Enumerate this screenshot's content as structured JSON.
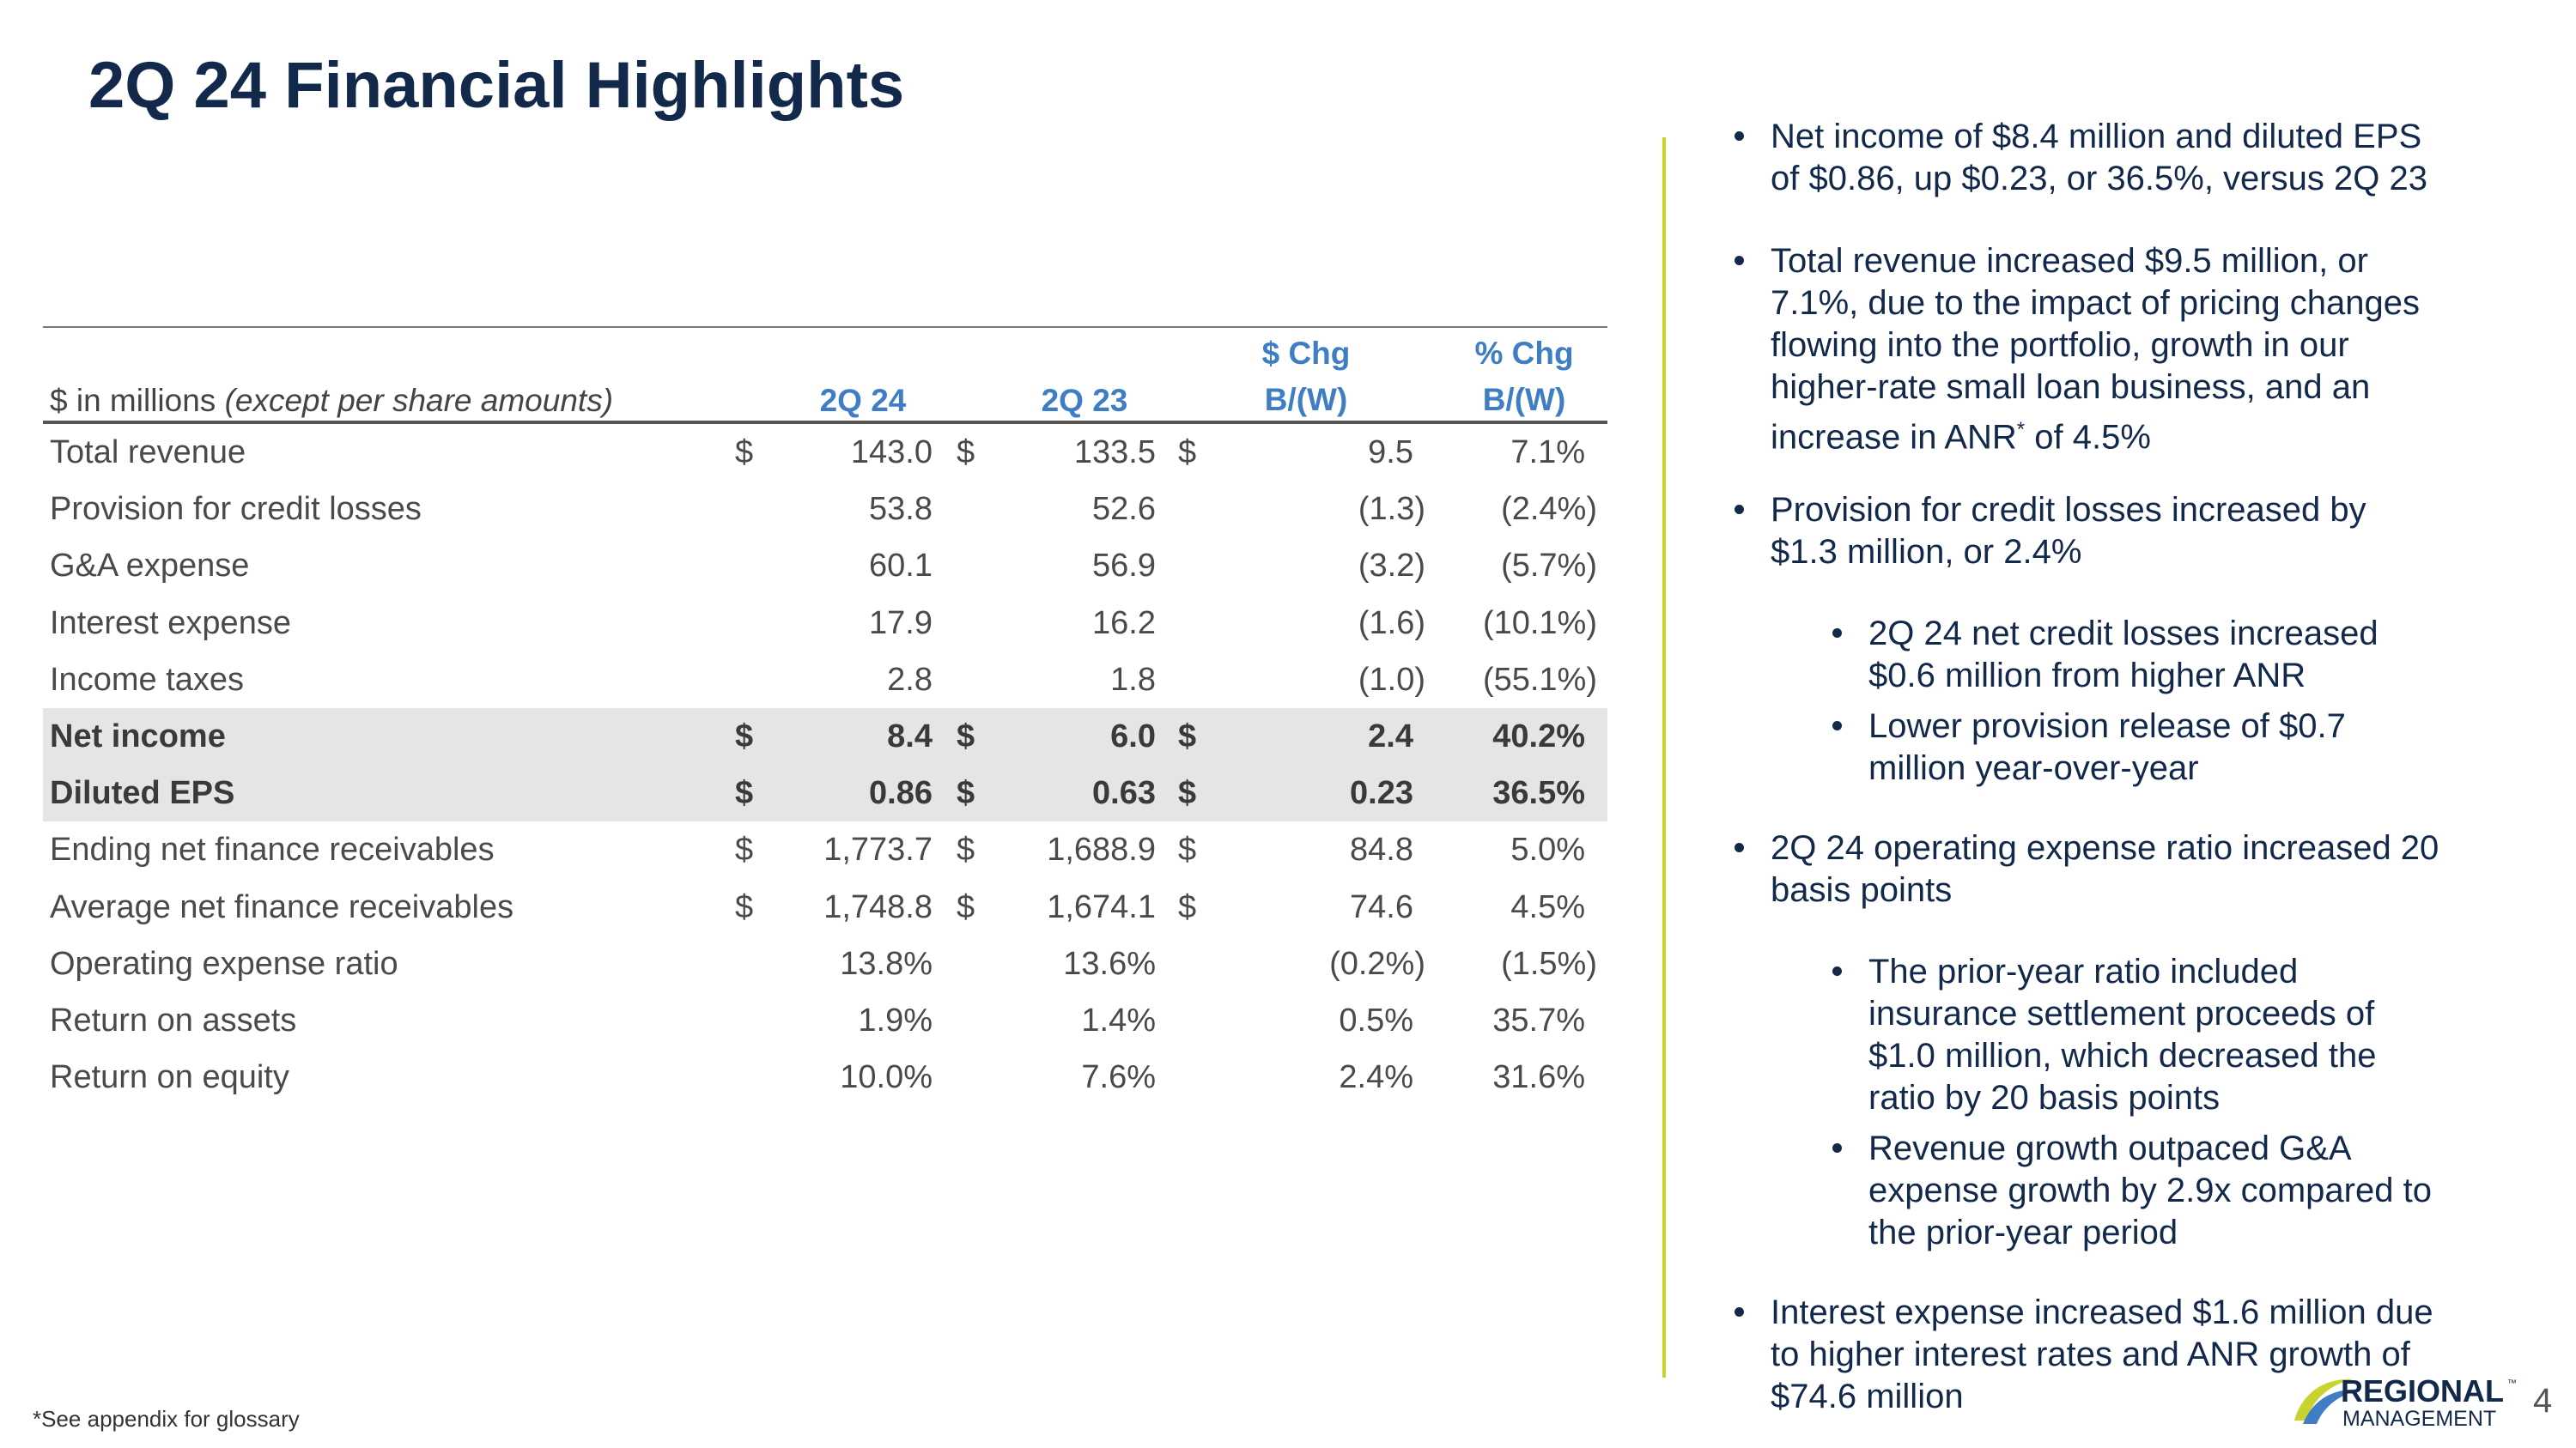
{
  "title": "2Q 24 Financial Highlights",
  "table": {
    "header": {
      "label_main": "$ in millions ",
      "label_italic": "(except per share amounts)",
      "col_2q24": "2Q 24",
      "col_2q23": "2Q 23",
      "col_chg_line1": "$ Chg",
      "col_chg_line2": "B/(W)",
      "col_pct_line1": "% Chg",
      "col_pct_line2": "B/(W)"
    },
    "rows": [
      {
        "label": "Total revenue",
        "c1": "$",
        "v1": "143.0",
        "c2": "$",
        "v2": "133.5",
        "c3": "$",
        "chg": "9.5",
        "pct": "7.1%"
      },
      {
        "label": "Provision for credit losses",
        "c1": "",
        "v1": "53.8",
        "c2": "",
        "v2": "52.6",
        "c3": "",
        "chg": "(1.3)",
        "pct": "(2.4%)"
      },
      {
        "label": "G&A expense",
        "c1": "",
        "v1": "60.1",
        "c2": "",
        "v2": "56.9",
        "c3": "",
        "chg": "(3.2)",
        "pct": "(5.7%)"
      },
      {
        "label": "Interest expense",
        "c1": "",
        "v1": "17.9",
        "c2": "",
        "v2": "16.2",
        "c3": "",
        "chg": "(1.6)",
        "pct": "(10.1%)"
      },
      {
        "label": "Income taxes",
        "c1": "",
        "v1": "2.8",
        "c2": "",
        "v2": "1.8",
        "c3": "",
        "chg": "(1.0)",
        "pct": "(55.1%)"
      },
      {
        "label": "Net income",
        "c1": "$",
        "v1": "8.4",
        "c2": "$",
        "v2": "6.0",
        "c3": "$",
        "chg": "2.4",
        "pct": "40.2%"
      },
      {
        "label": "Diluted EPS",
        "c1": "$",
        "v1": "0.86",
        "c2": "$",
        "v2": "0.63",
        "c3": "$",
        "chg": "0.23",
        "pct": "36.5%"
      },
      {
        "label": "Ending net finance receivables",
        "c1": "$",
        "v1": "1,773.7",
        "c2": "$",
        "v2": "1,688.9",
        "c3": "$",
        "chg": "84.8",
        "pct": "5.0%"
      },
      {
        "label": "Average net finance receivables",
        "c1": "$",
        "v1": "1,748.8",
        "c2": "$",
        "v2": "1,674.1",
        "c3": "$",
        "chg": "74.6",
        "pct": "4.5%"
      },
      {
        "label": "Operating expense ratio",
        "c1": "",
        "v1": "13.8%",
        "c2": "",
        "v2": "13.6%",
        "c3": "",
        "chg": "(0.2%)",
        "pct": "(1.5%)"
      },
      {
        "label": "Return on assets",
        "c1": "",
        "v1": "1.9%",
        "c2": "",
        "v2": "1.4%",
        "c3": "",
        "chg": "0.5%",
        "pct": "35.7%"
      },
      {
        "label": "Return on equity",
        "c1": "",
        "v1": "10.0%",
        "c2": "",
        "v2": "7.6%",
        "c3": "",
        "chg": "2.4%",
        "pct": "31.6%"
      }
    ]
  },
  "bullets": {
    "b1_l1": "Net income of $8.4 million and diluted EPS",
    "b1_l2": "of $0.86, up $0.23, or 36.5%, versus 2Q 23",
    "b2_l1": "Total revenue increased $9.5 million, or",
    "b2_l2": "7.1%, due to the impact of pricing changes",
    "b2_l3": "flowing into the portfolio, growth in our",
    "b2_l4": "higher-rate small loan business, and an",
    "b2_l5a": "increase in ANR",
    "b2_l5sup": "*",
    "b2_l5b": " of 4.5%",
    "b3_l1": "Provision for credit losses increased by",
    "b3_l2": "$1.3 million, or 2.4%",
    "b3s1_l1": "2Q 24 net credit losses increased",
    "b3s1_l2": "$0.6 million from higher ANR",
    "b3s2_l1": "Lower provision release of $0.7",
    "b3s2_l2": "million year-over-year",
    "b4_l1": "2Q 24 operating expense ratio increased 20",
    "b4_l2": "basis points",
    "b4s1_l1": "The prior-year ratio included",
    "b4s1_l2": "insurance settlement proceeds of",
    "b4s1_l3": "$1.0 million, which decreased the",
    "b4s1_l4": "ratio by 20 basis points",
    "b4s2_l1": "Revenue growth outpaced G&A",
    "b4s2_l2": "expense growth by 2.9x compared to",
    "b4s2_l3": "the prior-year period",
    "b5_l1": "Interest expense increased $1.6 million due",
    "b5_l2": "to higher interest rates and ANR growth of",
    "b5_l3": "$74.6 million"
  },
  "footnote": "*See appendix for glossary",
  "logo": {
    "line1": "REGIONAL",
    "line2": "MANAGEMENT",
    "tm": "™"
  },
  "page_number": "4",
  "colors": {
    "navy": "#13294b",
    "accent_blue": "#3f7ec4",
    "divider_green": "#c9d32e",
    "highlight_gray": "#e5e5e5"
  }
}
